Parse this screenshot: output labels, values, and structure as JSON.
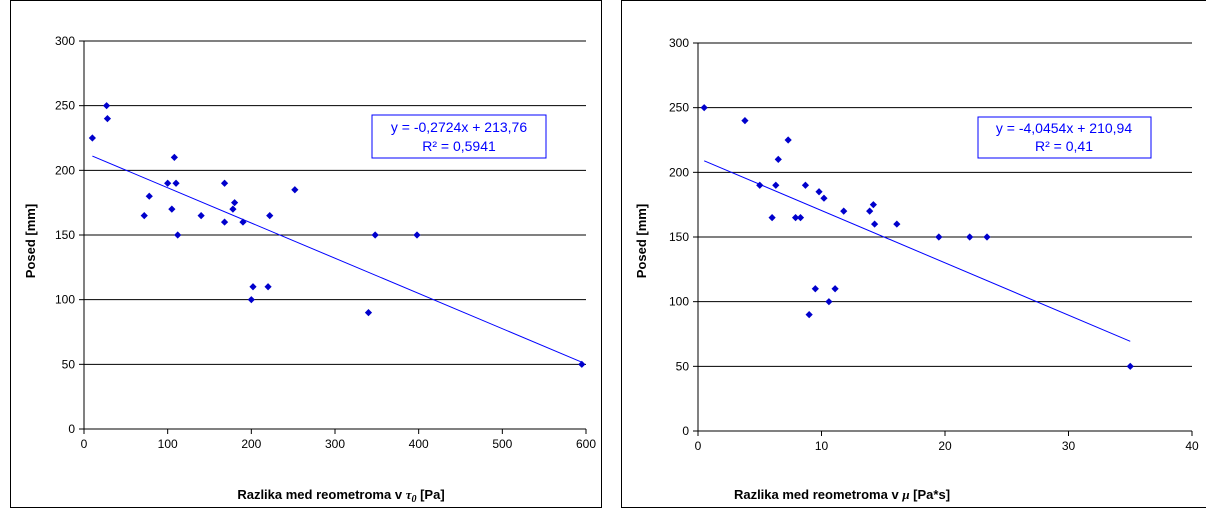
{
  "chart_data": [
    {
      "type": "scatter",
      "title": "",
      "xlabel": {
        "prefix": "Razlika med reometroma v",
        "symbol": "τ",
        "subscript": "0",
        "suffix": "[Pa]"
      },
      "ylabel": "Posed [mm]",
      "xlim": [
        0,
        600
      ],
      "ylim": [
        0,
        300
      ],
      "xticks": [
        0,
        100,
        200,
        300,
        400,
        500,
        600
      ],
      "yticks": [
        0,
        50,
        100,
        150,
        200,
        250,
        300
      ],
      "grid": "horizontal",
      "marker_color": "#0000cc",
      "trend_color": "#0000ff",
      "points": [
        {
          "x": 10,
          "y": 225
        },
        {
          "x": 27,
          "y": 250
        },
        {
          "x": 28,
          "y": 240
        },
        {
          "x": 72,
          "y": 165
        },
        {
          "x": 78,
          "y": 180
        },
        {
          "x": 100,
          "y": 190
        },
        {
          "x": 105,
          "y": 170
        },
        {
          "x": 108,
          "y": 210
        },
        {
          "x": 110,
          "y": 190
        },
        {
          "x": 112,
          "y": 150
        },
        {
          "x": 140,
          "y": 165
        },
        {
          "x": 168,
          "y": 190
        },
        {
          "x": 168,
          "y": 160
        },
        {
          "x": 178,
          "y": 170
        },
        {
          "x": 180,
          "y": 175
        },
        {
          "x": 190,
          "y": 160
        },
        {
          "x": 200,
          "y": 100
        },
        {
          "x": 202,
          "y": 110
        },
        {
          "x": 220,
          "y": 110
        },
        {
          "x": 222,
          "y": 165
        },
        {
          "x": 252,
          "y": 185
        },
        {
          "x": 340,
          "y": 90
        },
        {
          "x": 348,
          "y": 150
        },
        {
          "x": 398,
          "y": 150
        },
        {
          "x": 595,
          "y": 50
        }
      ],
      "trendline": {
        "slope": -0.2724,
        "intercept": 213.76,
        "x_range": [
          10,
          595
        ]
      },
      "equation": "y = -0,2724x + 213,76",
      "r2": "R² = 0,5941"
    },
    {
      "type": "scatter",
      "title": "",
      "xlabel": {
        "prefix": "Razlika med reometroma v",
        "symbol": "μ",
        "subscript": "",
        "suffix": "[Pa*s]"
      },
      "ylabel": "Posed [mm]",
      "xlim": [
        0,
        40
      ],
      "ylim": [
        0,
        300
      ],
      "xticks": [
        0,
        10,
        20,
        30,
        40
      ],
      "yticks": [
        0,
        50,
        100,
        150,
        200,
        250,
        300
      ],
      "grid": "horizontal",
      "marker_color": "#0000cc",
      "trend_color": "#0000ff",
      "points": [
        {
          "x": 0.5,
          "y": 250
        },
        {
          "x": 3.8,
          "y": 240
        },
        {
          "x": 5,
          "y": 190
        },
        {
          "x": 6,
          "y": 165
        },
        {
          "x": 6.3,
          "y": 190
        },
        {
          "x": 6.5,
          "y": 210
        },
        {
          "x": 7.3,
          "y": 225
        },
        {
          "x": 7.9,
          "y": 165
        },
        {
          "x": 8.3,
          "y": 165
        },
        {
          "x": 8.7,
          "y": 190
        },
        {
          "x": 9,
          "y": 90
        },
        {
          "x": 9.5,
          "y": 110
        },
        {
          "x": 9.8,
          "y": 185
        },
        {
          "x": 10.2,
          "y": 180
        },
        {
          "x": 10.6,
          "y": 100
        },
        {
          "x": 11.1,
          "y": 110
        },
        {
          "x": 11.8,
          "y": 170
        },
        {
          "x": 13.9,
          "y": 170
        },
        {
          "x": 14.2,
          "y": 175
        },
        {
          "x": 14.3,
          "y": 160
        },
        {
          "x": 16.1,
          "y": 160
        },
        {
          "x": 19.5,
          "y": 150
        },
        {
          "x": 22,
          "y": 150
        },
        {
          "x": 23.4,
          "y": 150
        },
        {
          "x": 35,
          "y": 50
        }
      ],
      "trendline": {
        "slope": -4.0454,
        "intercept": 210.94,
        "x_range": [
          0.5,
          35
        ]
      },
      "equation": "y = -4,0454x + 210,94",
      "r2": "R² = 0,41"
    }
  ]
}
